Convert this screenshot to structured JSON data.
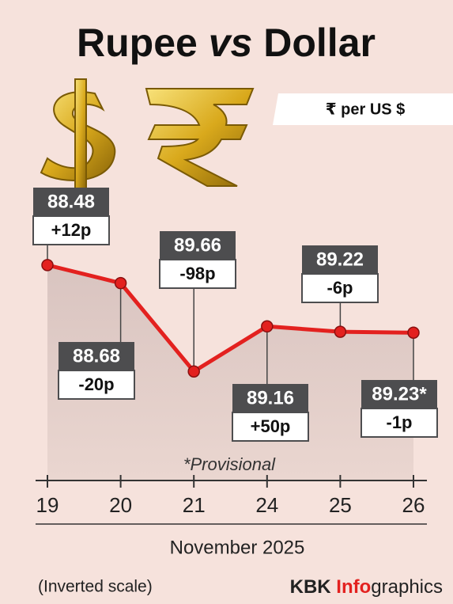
{
  "chart_data": {
    "type": "line",
    "title_parts": [
      "Rupee",
      "vs",
      "Dollar"
    ],
    "unit": "₹ per US $",
    "categories": [
      "19",
      "20",
      "21",
      "24",
      "25",
      "26"
    ],
    "values": [
      88.48,
      88.68,
      89.66,
      89.16,
      89.22,
      89.23
    ],
    "value_labels": [
      "88.48",
      "88.68",
      "89.66",
      "89.16",
      "89.22",
      "89.23*"
    ],
    "changes": [
      "+12p",
      "-20p",
      "-98p",
      "+50p",
      "-6p",
      "-1p"
    ],
    "ylim": [
      88.2,
      90.8
    ],
    "inverted": true,
    "color": "#e3211f",
    "note": "*Provisional",
    "x_label": "November 2025",
    "scale_note": "(Inverted scale)",
    "credit_parts": [
      "KBK",
      "Info",
      "graphics"
    ]
  }
}
